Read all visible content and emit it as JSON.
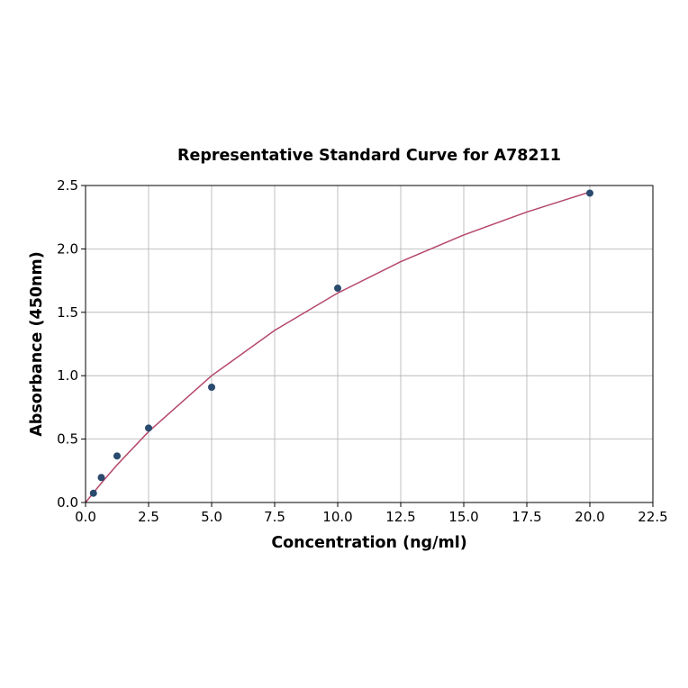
{
  "chart_data": {
    "type": "scatter",
    "title": "Representative Standard Curve for A78211",
    "xlabel": "Concentration (ng/ml)",
    "ylabel": "Absorbance (450nm)",
    "xlim": [
      0,
      22.5
    ],
    "ylim": [
      0,
      2.5
    ],
    "xticks": [
      "0.0",
      "2.5",
      "5.0",
      "7.5",
      "10.0",
      "12.5",
      "15.0",
      "17.5",
      "20.0",
      "22.5"
    ],
    "yticks": [
      "0.0",
      "0.5",
      "1.0",
      "1.5",
      "2.0",
      "2.5"
    ],
    "grid": true,
    "points": {
      "x": [
        0.3125,
        0.625,
        1.25,
        2.5,
        5,
        10,
        20
      ],
      "y": [
        0.073,
        0.197,
        0.367,
        0.587,
        0.909,
        1.69,
        2.44
      ],
      "color": "#2a4a6e"
    },
    "fit_curve": {
      "x": [
        0,
        0.625,
        1.25,
        2.5,
        5,
        7.5,
        10,
        12.5,
        15,
        17.5,
        20
      ],
      "y": [
        0,
        0.153,
        0.297,
        0.559,
        1.0,
        1.357,
        1.652,
        1.899,
        2.11,
        2.291,
        2.449
      ],
      "color": "#b5476a"
    }
  }
}
